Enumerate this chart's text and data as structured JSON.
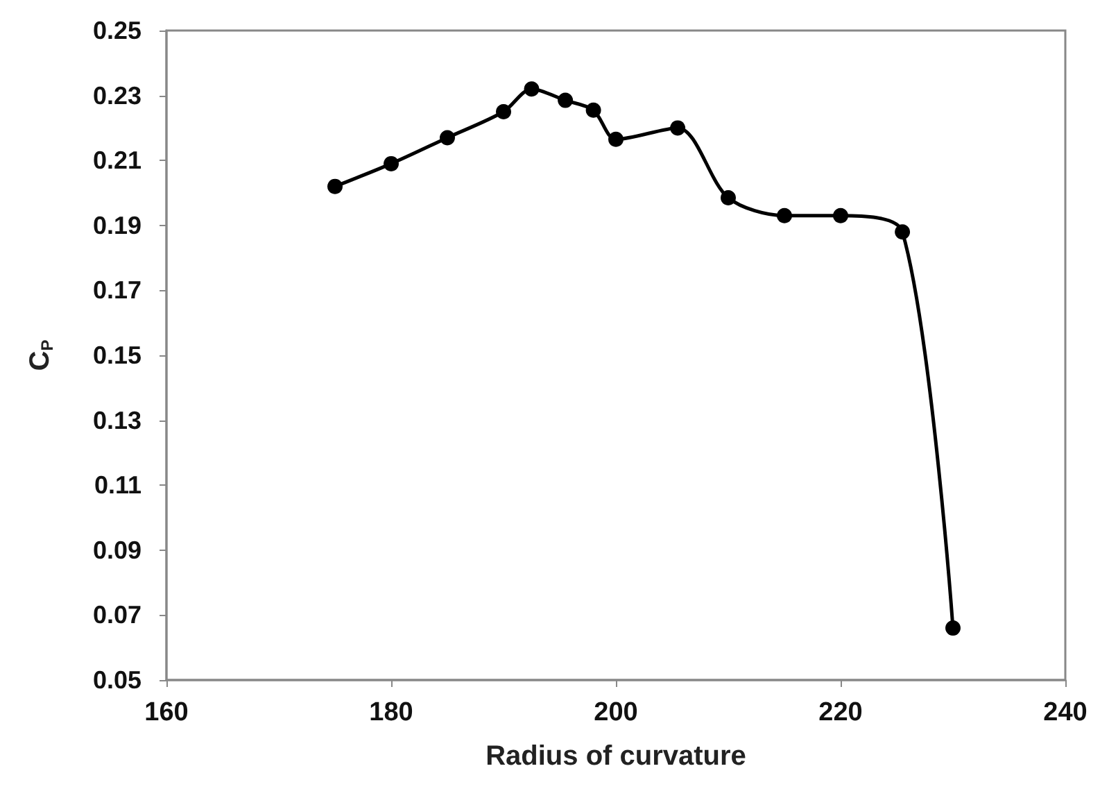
{
  "chart_data": {
    "type": "line",
    "xlabel": "Radius of curvature",
    "ylabel": "C$_{P}$",
    "x": [
      175,
      180,
      185,
      190,
      192.5,
      195.5,
      198,
      200,
      205.5,
      210,
      215,
      220,
      225.5,
      230
    ],
    "series": [
      {
        "color": "#000000",
        "values": [
          0.202,
          0.209,
          0.217,
          0.225,
          0.232,
          0.2285,
          0.2255,
          0.2165,
          0.22,
          0.1985,
          0.193,
          0.193,
          0.188,
          0.066
        ]
      }
    ],
    "xlim": [
      160,
      240
    ],
    "xticks": [
      160,
      180,
      200,
      220,
      240
    ],
    "ylim": [
      0.05,
      0.25
    ],
    "yticks": [
      0.05,
      0.07,
      0.09,
      0.11,
      0.13,
      0.15,
      0.17,
      0.19,
      0.21,
      0.23,
      0.25
    ],
    "grid": false,
    "marker": "circle",
    "line_style": "solid"
  }
}
